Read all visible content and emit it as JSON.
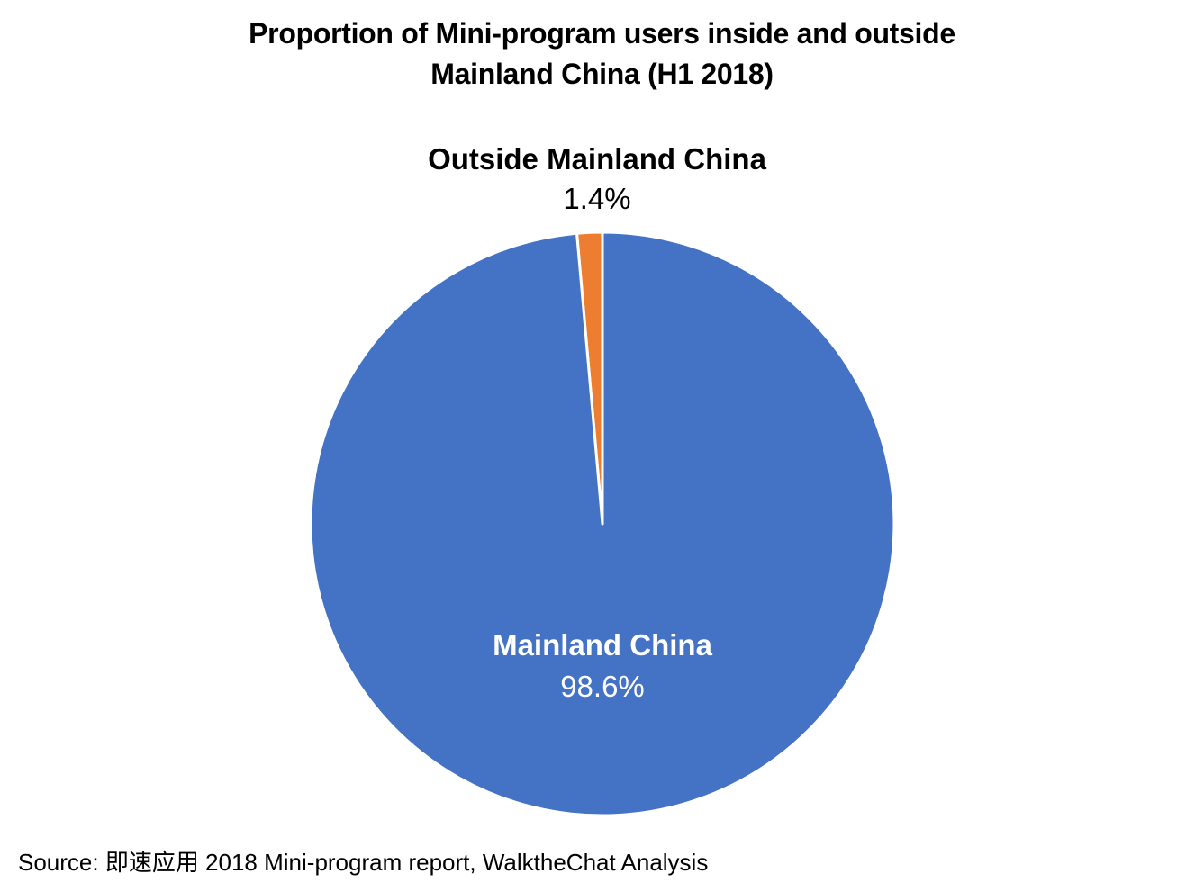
{
  "chart_data": {
    "type": "pie",
    "title_lines": [
      "Proportion of Mini-program users inside and outside",
      "Mainland China (H1 2018)"
    ],
    "slices": [
      {
        "label": "Outside Mainland China",
        "value": 1.4,
        "display": "1.4%",
        "color": "#ED7D31"
      },
      {
        "label": "Mainland China",
        "value": 98.6,
        "display": "98.6%",
        "color": "#4472C4"
      }
    ],
    "start_angle_deg": 0,
    "direction": "counterclockwise",
    "legend": "none",
    "labels": "category-name-and-percentage"
  },
  "source": "Source: 即速应用 2018 Mini-program report, WalktheChat Analysis"
}
